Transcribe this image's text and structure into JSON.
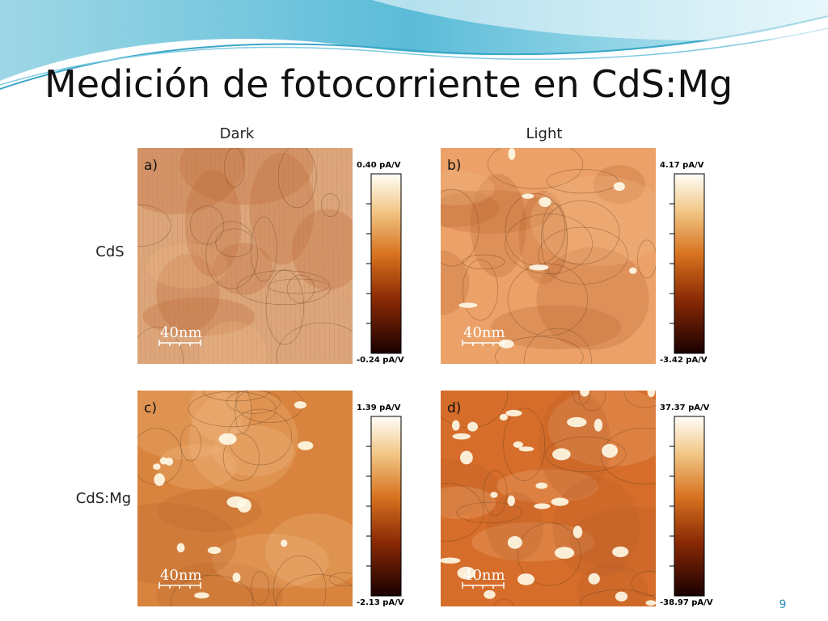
{
  "header": {
    "title": "Medición de fotocorriente en CdS:Mg"
  },
  "columns": [
    "Dark",
    "Light"
  ],
  "rows": [
    "CdS",
    "CdS:Mg"
  ],
  "panels": [
    {
      "label": "a)",
      "scale": "40nm",
      "max": "0.40 pA/V",
      "min": "-0.24 pA/V"
    },
    {
      "label": "b)",
      "scale": "40nm",
      "max": "4.17 pA/V",
      "min": "-3.42 pA/V"
    },
    {
      "label": "c)",
      "scale": "40nm",
      "max": "1.39 pA/V",
      "min": "-2.13 pA/V"
    },
    {
      "label": "d)",
      "scale": "40nm",
      "max": "37.37 pA/V",
      "min": "-38.97 pA/V"
    }
  ],
  "page_number": "9"
}
